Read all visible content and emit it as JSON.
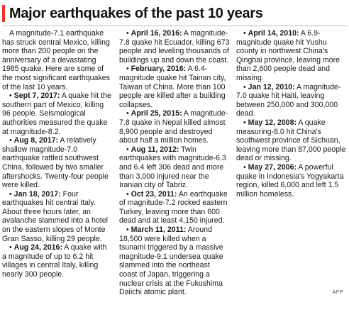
{
  "title": "Major earthquakes of the past 10 years",
  "accent_color": "#e9342b",
  "intro": "A magnitude-7.1 earthquake has struck central Mexico, killing more than 200 people on the anniversary of a devastating 1985 quake. Here are some of the most significant earthquakes of the last 10 years.",
  "bullet": "•",
  "events": [
    {
      "date": "Sept 7, 2017:",
      "text": "A quake hit the southern part of Mexico, killing 96 people. Seismological authorities measured the quake at magnitude-8.2."
    },
    {
      "date": "Aug 8, 2017:",
      "text": "A relatively shallow magnitude-7.0 earthquake rattled southwest China, followed by two smaller aftershocks. Twenty-four people were killed."
    },
    {
      "date": "Jan 18, 2017:",
      "text": "Four earthquakes hit central Italy. About three hours later, an avalanche slammed into a hotel on the eastern slopes of Monte Gran Sasso, killing 29 people."
    },
    {
      "date": "Aug 24, 2016:",
      "text": "A quake with a magnitude of up to 6.2 hit villages in central Italy, killing nearly 300 people."
    },
    {
      "date": "April 16, 2016:",
      "text": "A magnitude-7.8 quake hit Ecuador, killing 673 people and leveling thousands of buildings up and down the coast."
    },
    {
      "date": "February, 2016:",
      "text": "A 6.4-magnitude quake hit Tainan city, Taiwan of China. More than 100 people are killed after a building collapses."
    },
    {
      "date": "April 25, 2015:",
      "text": "A magnitude-7.8 quake in Nepal killed almost 8,900 people and destroyed about half a million homes."
    },
    {
      "date": "Aug 11, 2012:",
      "text": "Twin earthquakes with magnitude-6.3 and 6.4 left 306 dead and more than 3,000 injured near the Iranian city of Tabriz."
    },
    {
      "date": "Oct 23, 2011:",
      "text": "An earthquake of magnitude-7.2 rocked eastern Turkey, leaving more than 600 dead and at least 4,150 injured."
    },
    {
      "date": "March 11, 2011:",
      "text": "Around 18,500 were killed when a tsunami triggered by a massive magnitude-9.1 undersea quake slammed into the northeast coast of Japan, triggering a nuclear crisis at the Fukushima Daiichi atomic plant."
    },
    {
      "date": "April 14, 2010:",
      "text": "A 6.9-magnitude quake hit Yushu county in northwest China's Qinghai province, leaving more than 2,600 people dead and missing."
    },
    {
      "date": "Jan 12, 2010:",
      "text": "A magnitude-7.0 quake hit Haiti, leaving between 250,000 and 300,000 dead."
    },
    {
      "date": "May 12, 2008:",
      "text": "A quake measuring-8.0 hit China's southwest province of Sichuan, leaving more than 87,000 people dead or missing."
    },
    {
      "date": "May 27, 2006:",
      "text": "A powerful quake in Indonesia's Yogyakarta region, killed 6,000 and left 1.5 million homeless."
    }
  ],
  "source": "AFP"
}
